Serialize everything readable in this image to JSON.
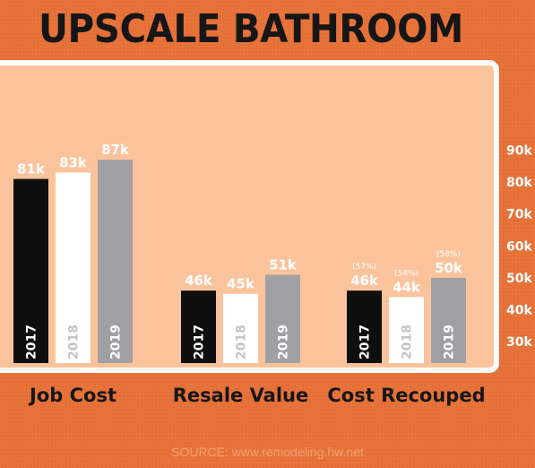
{
  "header": {
    "title": "UPSCALE BATHROOM ADDITION"
  },
  "footer": {
    "source_label": "SOURCE:",
    "source_url": "www.remodeling.hw.net"
  },
  "colors": {
    "background": "#e8733a",
    "panel": "#fbc39c",
    "2017": "#0f0f0f",
    "2018": "#ffffff",
    "2019": "#a0a0a4",
    "value_text": "#ffffff"
  },
  "chart_data": {
    "type": "bar",
    "title": "UPSCALE BATHROOM ADDITION",
    "categories": [
      "Job Cost",
      "Resale Value",
      "Cost Recouped"
    ],
    "series": [
      {
        "name": "2017",
        "values": [
          81,
          46,
          46
        ],
        "labels": [
          "81k",
          "46k",
          "46k"
        ]
      },
      {
        "name": "2018",
        "values": [
          83,
          45,
          44
        ],
        "labels": [
          "83k",
          "45k",
          "44k"
        ]
      },
      {
        "name": "2019",
        "values": [
          87,
          51,
          50
        ],
        "labels": [
          "87k",
          "51k",
          "50k"
        ]
      }
    ],
    "percent_labels": {
      "2017": "(57%)",
      "2018": "(54%)",
      "2019": "(58%)"
    },
    "y_ticks": [
      "90k",
      "80k",
      "70k",
      "60k",
      "50k",
      "40k",
      "30k"
    ],
    "y_tick_values": [
      90,
      80,
      70,
      60,
      50,
      40,
      30
    ],
    "units": "k",
    "grid": false,
    "legend": "bar-embedded year labels"
  }
}
